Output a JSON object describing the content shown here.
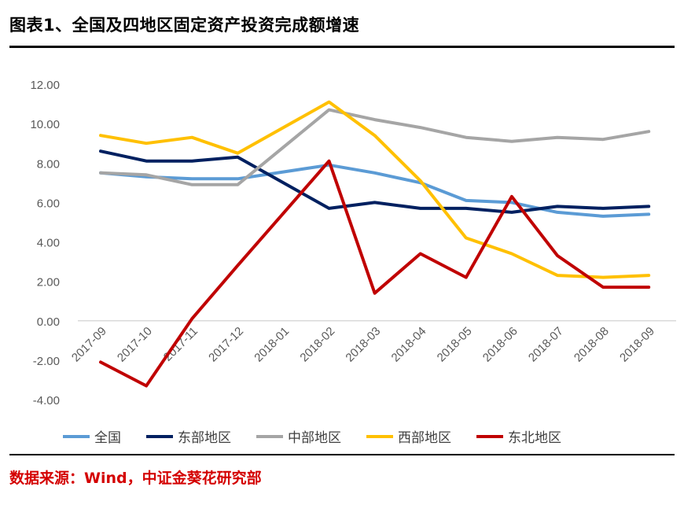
{
  "title": "图表1、全国及四地区固定资产投资完成额增速",
  "source": "数据来源：Wind，中证金葵花研究部",
  "chart_data": {
    "type": "line",
    "categories": [
      "2017-09",
      "2017-10",
      "2017-11",
      "2017-12",
      "2018-01",
      "2018-02",
      "2018-03",
      "2018-04",
      "2018-05",
      "2018-06",
      "2018-07",
      "2018-08",
      "2018-09"
    ],
    "ylim": [
      -4,
      12
    ],
    "yticks": [
      "12.00",
      "10.00",
      "8.00",
      "6.00",
      "4.00",
      "2.00",
      "0.00",
      "-2.00",
      "-4.00"
    ],
    "ytick_values": [
      12,
      10,
      8,
      6,
      4,
      2,
      0,
      -2,
      -4
    ],
    "grid": false,
    "legend_position": "bottom",
    "series": [
      {
        "name": "全国",
        "color": "#5b9bd5",
        "values": [
          7.5,
          7.3,
          7.2,
          7.2,
          null,
          7.9,
          7.5,
          7.0,
          6.1,
          6.0,
          5.5,
          5.3,
          5.4
        ]
      },
      {
        "name": "东部地区",
        "color": "#002060",
        "values": [
          8.6,
          8.1,
          8.1,
          8.3,
          null,
          5.7,
          6.0,
          5.7,
          5.7,
          5.5,
          5.8,
          5.7,
          5.8
        ]
      },
      {
        "name": "中部地区",
        "color": "#a5a5a5",
        "values": [
          7.5,
          7.4,
          6.9,
          6.9,
          null,
          10.7,
          10.2,
          9.8,
          9.3,
          9.1,
          9.3,
          9.2,
          9.6
        ]
      },
      {
        "name": "西部地区",
        "color": "#ffc000",
        "values": [
          9.4,
          9.0,
          9.3,
          8.5,
          null,
          11.1,
          9.4,
          7.1,
          4.2,
          3.4,
          2.3,
          2.2,
          2.3
        ]
      },
      {
        "name": "东北地区",
        "color": "#c00000",
        "values": [
          -2.1,
          -3.3,
          0.1,
          2.8,
          null,
          8.1,
          1.4,
          3.4,
          2.2,
          6.3,
          3.3,
          1.7,
          1.7
        ]
      }
    ]
  }
}
